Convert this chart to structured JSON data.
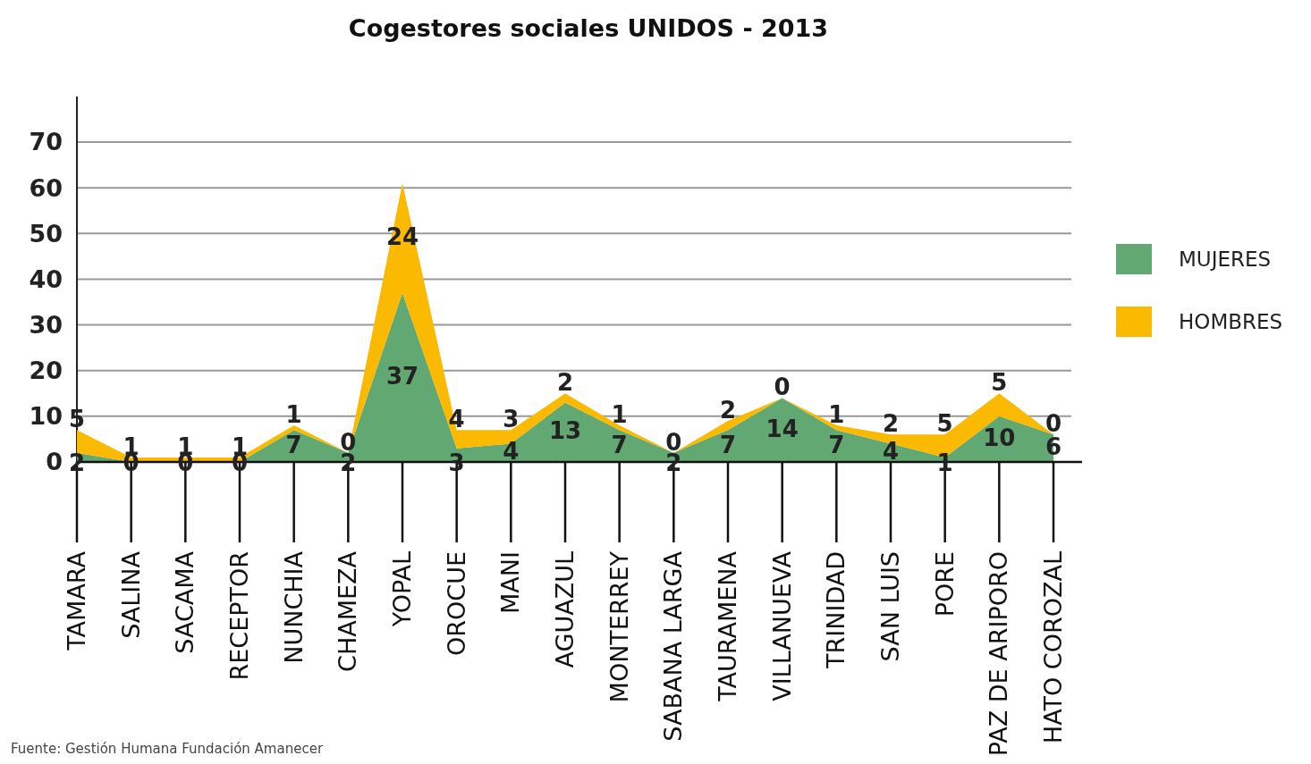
{
  "chart_data": {
    "type": "area",
    "stacked": true,
    "title": "Cogestores sociales UNIDOS - 2013",
    "categories": [
      "TAMARA",
      "SALINA",
      "SACAMA",
      "RECEPTOR",
      "NUNCHIA",
      "CHAMEZA",
      "YOPAL",
      "OROCUE",
      "MANI",
      "AGUAZUL",
      "MONTERREY",
      "SABANA LARGA",
      "TAURAMENA",
      "VILLANUEVA",
      "TRINIDAD",
      "SAN LUIS",
      "PORE",
      "PAZ DE ARIPORO",
      "HATO COROZAL"
    ],
    "series": [
      {
        "name": "MUJERES",
        "color": "#62a873",
        "values": [
          2,
          0,
          0,
          0,
          7,
          2,
          37,
          3,
          4,
          13,
          7,
          2,
          7,
          14,
          7,
          4,
          1,
          10,
          6
        ]
      },
      {
        "name": "HOMBRES",
        "color": "#fbb900",
        "values": [
          5,
          1,
          1,
          1,
          1,
          0,
          24,
          4,
          3,
          2,
          1,
          0,
          2,
          0,
          1,
          2,
          5,
          5,
          0
        ]
      }
    ],
    "ylim": [
      0,
      70
    ],
    "yticks": [
      0,
      10,
      20,
      30,
      40,
      50,
      60,
      70
    ],
    "grid": "y",
    "legend": "right",
    "data_labels": true,
    "annotations": [
      "Fuente: Gestión Humana Fundación Amanecer"
    ]
  }
}
